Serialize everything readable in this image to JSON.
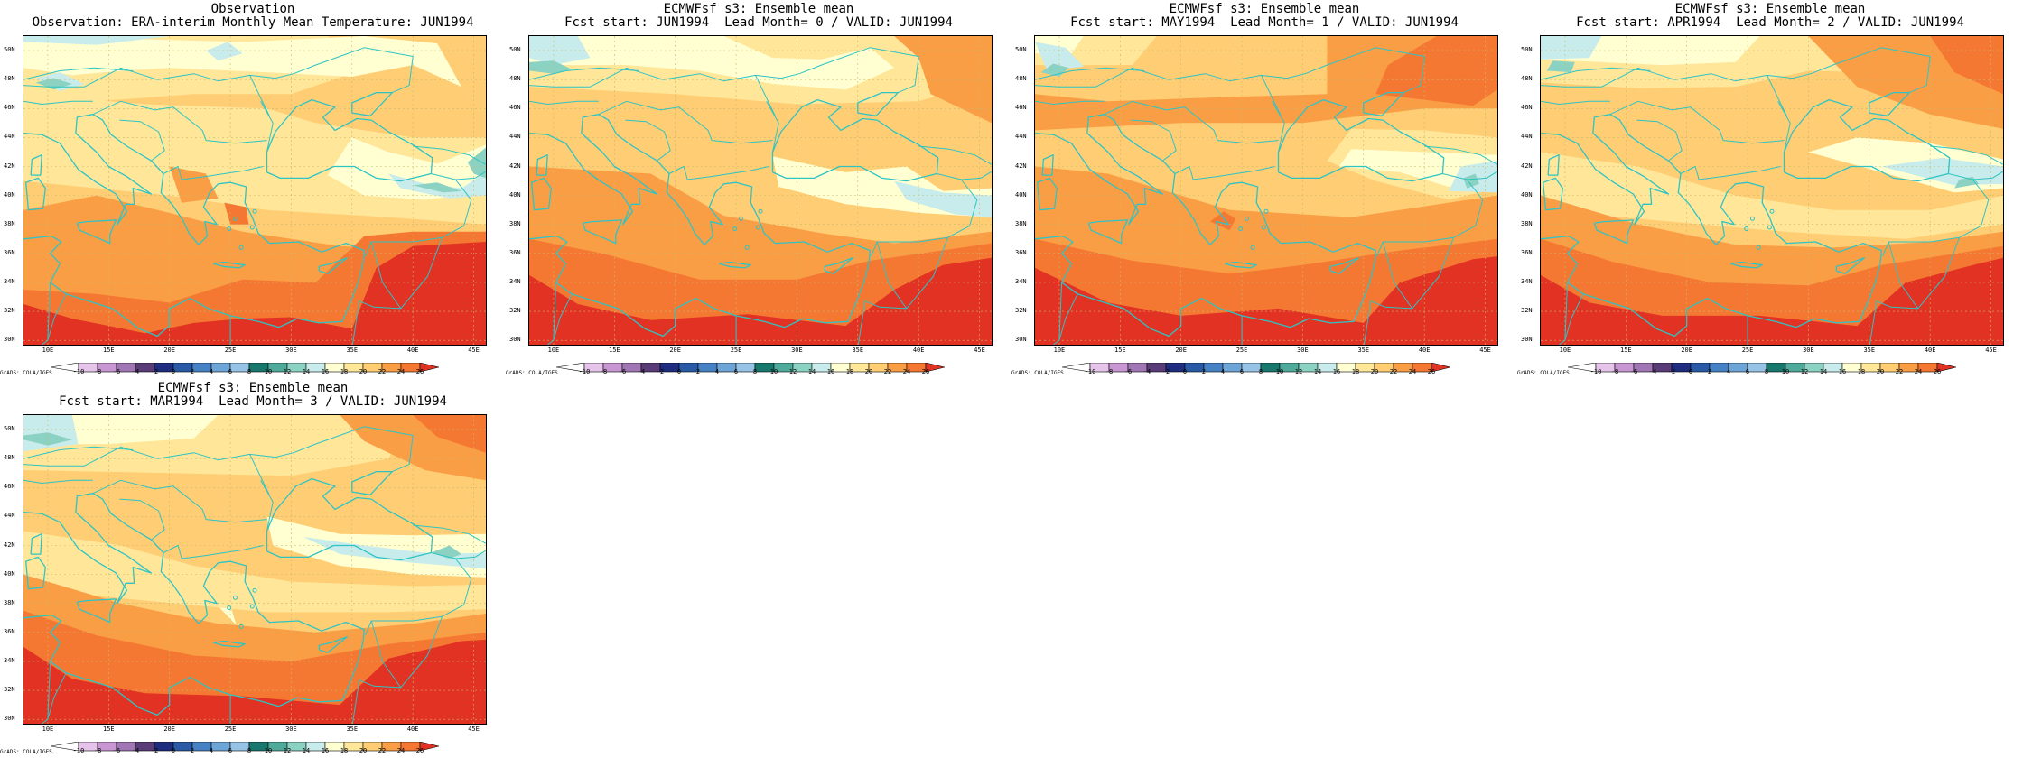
{
  "panels": [
    {
      "title": "Observation",
      "subtitle": "Observation: ERA-interim Monthly Mean Temperature: JUN1994"
    },
    {
      "title": "ECMWFsf s3: Ensemble mean",
      "subtitle": "Fcst start: JUN1994  Lead Month= 0 / VALID: JUN1994"
    },
    {
      "title": "ECMWFsf s3: Ensemble mean",
      "subtitle": "Fcst start: MAY1994  Lead Month= 1 / VALID: JUN1994"
    },
    {
      "title": "ECMWFsf s3: Ensemble mean",
      "subtitle": "Fcst start: APR1994  Lead Month= 2 / VALID: JUN1994"
    },
    {
      "title": "ECMWFsf s3: Ensemble mean",
      "subtitle": "Fcst start: MAR1994  Lead Month= 3 / VALID: JUN1994"
    }
  ],
  "lat_labels": [
    "50N",
    "48N",
    "46N",
    "44N",
    "42N",
    "40N",
    "38N",
    "36N",
    "34N",
    "32N",
    "30N"
  ],
  "lon_labels": [
    "10E",
    "15E",
    "20E",
    "25E",
    "30E",
    "35E",
    "40E",
    "45E"
  ],
  "colorbar": {
    "labels": [
      "-10",
      "-8",
      "-6",
      "-4",
      "-2",
      "0",
      "2",
      "4",
      "6",
      "8",
      "10",
      "12",
      "14",
      "16",
      "18",
      "20",
      "22",
      "24",
      "26"
    ],
    "colors": [
      "#ffffff",
      "#e6c3ea",
      "#c896d2",
      "#a076b4",
      "#5a3c78",
      "#1e2d7d",
      "#2a5aa5",
      "#4682c3",
      "#6ea5d7",
      "#96c3e6",
      "#19786e",
      "#50aa9b",
      "#8cd2c3",
      "#c8ebeb",
      "#ffffd2",
      "#ffe699",
      "#ffcd73",
      "#fa9e46",
      "#f57832",
      "#e13223"
    ]
  },
  "credit": "GrADS: COLA/IGES"
}
